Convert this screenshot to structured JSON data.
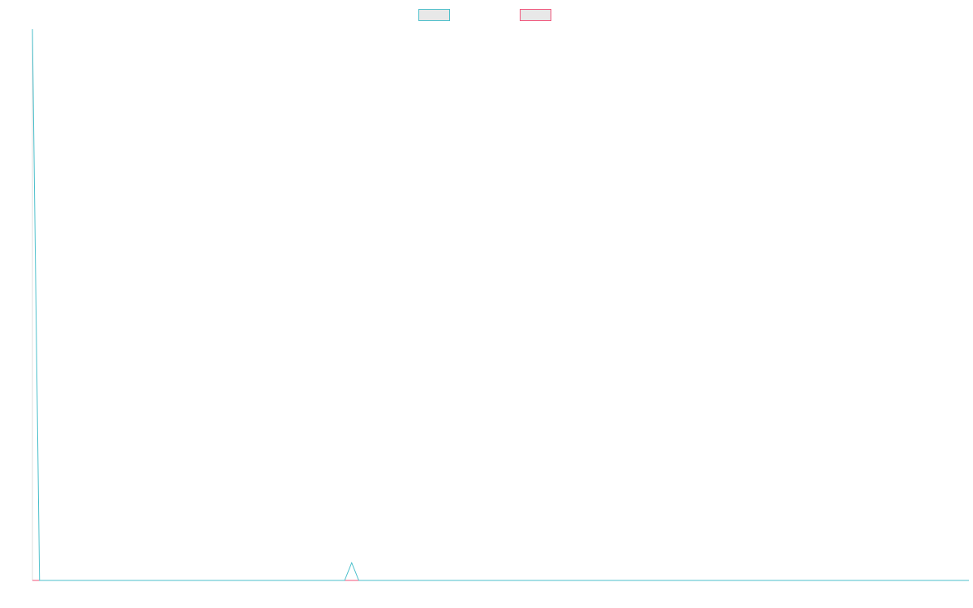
{
  "chart_data": {
    "type": "line",
    "title": "",
    "xlabel": "",
    "ylabel": "",
    "legend_position": "top",
    "grid": false,
    "x_count": 133,
    "ylim": [
      0,
      100
    ],
    "series": [
      {
        "name": "",
        "color": "#4bbfcb",
        "fill": "#e8e8e8",
        "points": [
          [
            0,
            100
          ],
          [
            1,
            0
          ],
          [
            44,
            0
          ],
          [
            45,
            3.2
          ],
          [
            46,
            0
          ],
          [
            132,
            0
          ]
        ]
      },
      {
        "name": "",
        "color": "#f1537a",
        "fill": "#e8e8e8",
        "points": [
          [
            0,
            0
          ],
          [
            132,
            0
          ]
        ]
      }
    ]
  }
}
